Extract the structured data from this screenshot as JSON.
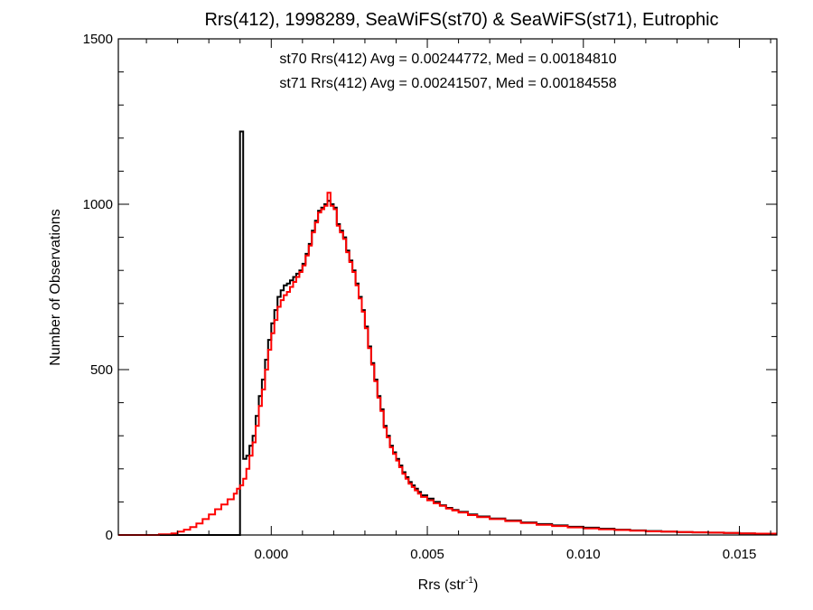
{
  "chart_data": {
    "type": "histogram",
    "title": "Rrs(412), 1998289, SeaWiFS(st70) & SeaWiFS(st71), Eutrophic",
    "xlabel": "Rrs (str",
    "xlabel_sup": "-1",
    "xlabel_end": ")",
    "ylabel": "Number of Observations",
    "xlim": [
      -0.0049,
      0.0162
    ],
    "ylim": [
      0,
      1500
    ],
    "x_ticks": [
      {
        "value": 0.0,
        "label": "0.000"
      },
      {
        "value": 0.005,
        "label": "0.005"
      },
      {
        "value": 0.01,
        "label": "0.010"
      },
      {
        "value": 0.015,
        "label": "0.015"
      }
    ],
    "y_ticks": [
      {
        "value": 0,
        "label": "0"
      },
      {
        "value": 500,
        "label": "500"
      },
      {
        "value": 1000,
        "label": "1000"
      },
      {
        "value": 1500,
        "label": "1500"
      }
    ],
    "grid": false,
    "legend_placement": "top-center",
    "stats": [
      {
        "text": "st70 Rrs(412) Avg = 0.00244772, Med = 0.00184810",
        "color": "#000000"
      },
      {
        "text": "st71 Rrs(412) Avg = 0.00241507, Med = 0.00184558",
        "color": "#ff0000"
      }
    ],
    "series": [
      {
        "color": "#000000",
        "points": [
          [
            -0.0049,
            0
          ],
          [
            -0.0011,
            0
          ],
          [
            -0.001,
            1220
          ],
          [
            -0.0009,
            230
          ],
          [
            -0.0008,
            240
          ],
          [
            -0.0007,
            270
          ],
          [
            -0.0006,
            300
          ],
          [
            -0.0005,
            360
          ],
          [
            -0.0004,
            420
          ],
          [
            -0.0003,
            470
          ],
          [
            -0.0002,
            530
          ],
          [
            -0.0001,
            590
          ],
          [
            0.0,
            640
          ],
          [
            0.0001,
            680
          ],
          [
            0.0002,
            720
          ],
          [
            0.0003,
            740
          ],
          [
            0.0004,
            755
          ],
          [
            0.0005,
            760
          ],
          [
            0.0006,
            770
          ],
          [
            0.0007,
            780
          ],
          [
            0.0008,
            790
          ],
          [
            0.0009,
            800
          ],
          [
            0.001,
            820
          ],
          [
            0.0011,
            850
          ],
          [
            0.0012,
            880
          ],
          [
            0.0013,
            920
          ],
          [
            0.0014,
            950
          ],
          [
            0.0015,
            980
          ],
          [
            0.0016,
            990
          ],
          [
            0.0017,
            1000
          ],
          [
            0.0018,
            1010
          ],
          [
            0.0019,
            1000
          ],
          [
            0.002,
            990
          ],
          [
            0.0021,
            940
          ],
          [
            0.0022,
            920
          ],
          [
            0.0023,
            900
          ],
          [
            0.0024,
            860
          ],
          [
            0.0025,
            830
          ],
          [
            0.0026,
            800
          ],
          [
            0.0027,
            760
          ],
          [
            0.0028,
            720
          ],
          [
            0.0029,
            680
          ],
          [
            0.003,
            630
          ],
          [
            0.0031,
            570
          ],
          [
            0.0032,
            520
          ],
          [
            0.0033,
            470
          ],
          [
            0.0034,
            420
          ],
          [
            0.0035,
            380
          ],
          [
            0.0036,
            330
          ],
          [
            0.0037,
            300
          ],
          [
            0.0038,
            270
          ],
          [
            0.0039,
            250
          ],
          [
            0.004,
            230
          ],
          [
            0.0041,
            210
          ],
          [
            0.0042,
            190
          ],
          [
            0.0043,
            175
          ],
          [
            0.0044,
            160
          ],
          [
            0.0045,
            150
          ],
          [
            0.0046,
            140
          ],
          [
            0.0047,
            130
          ],
          [
            0.0048,
            120
          ],
          [
            0.005,
            110
          ],
          [
            0.0052,
            100
          ],
          [
            0.0054,
            90
          ],
          [
            0.0056,
            82
          ],
          [
            0.0058,
            76
          ],
          [
            0.006,
            70
          ],
          [
            0.0063,
            62
          ],
          [
            0.0066,
            56
          ],
          [
            0.007,
            50
          ],
          [
            0.0075,
            44
          ],
          [
            0.008,
            38
          ],
          [
            0.0085,
            33
          ],
          [
            0.009,
            29
          ],
          [
            0.0095,
            25
          ],
          [
            0.01,
            22
          ],
          [
            0.0105,
            19
          ],
          [
            0.011,
            16
          ],
          [
            0.0115,
            14
          ],
          [
            0.012,
            12
          ],
          [
            0.0125,
            10
          ],
          [
            0.013,
            9
          ],
          [
            0.0135,
            8
          ],
          [
            0.014,
            7
          ],
          [
            0.0145,
            6
          ],
          [
            0.015,
            5
          ],
          [
            0.0155,
            4
          ],
          [
            0.0162,
            4
          ]
        ]
      },
      {
        "color": "#ff0000",
        "points": [
          [
            -0.0049,
            0
          ],
          [
            -0.004,
            0
          ],
          [
            -0.0036,
            2
          ],
          [
            -0.0032,
            5
          ],
          [
            -0.003,
            10
          ],
          [
            -0.0028,
            16
          ],
          [
            -0.0026,
            24
          ],
          [
            -0.0024,
            35
          ],
          [
            -0.0022,
            48
          ],
          [
            -0.002,
            62
          ],
          [
            -0.0018,
            78
          ],
          [
            -0.0016,
            92
          ],
          [
            -0.0014,
            108
          ],
          [
            -0.0012,
            125
          ],
          [
            -0.0011,
            140
          ],
          [
            -0.001,
            150
          ],
          [
            -0.0009,
            170
          ],
          [
            -0.0008,
            200
          ],
          [
            -0.0007,
            240
          ],
          [
            -0.0006,
            280
          ],
          [
            -0.0005,
            330
          ],
          [
            -0.0004,
            390
          ],
          [
            -0.0003,
            440
          ],
          [
            -0.0002,
            500
          ],
          [
            -0.0001,
            560
          ],
          [
            0.0,
            610
          ],
          [
            0.0001,
            650
          ],
          [
            0.0002,
            690
          ],
          [
            0.0003,
            710
          ],
          [
            0.0004,
            725
          ],
          [
            0.0005,
            735
          ],
          [
            0.0006,
            750
          ],
          [
            0.0007,
            765
          ],
          [
            0.0008,
            780
          ],
          [
            0.0009,
            795
          ],
          [
            0.001,
            815
          ],
          [
            0.0011,
            845
          ],
          [
            0.0012,
            875
          ],
          [
            0.0013,
            915
          ],
          [
            0.0014,
            945
          ],
          [
            0.0015,
            975
          ],
          [
            0.0016,
            985
          ],
          [
            0.0017,
            995
          ],
          [
            0.0018,
            1035
          ],
          [
            0.0019,
            995
          ],
          [
            0.002,
            985
          ],
          [
            0.0021,
            935
          ],
          [
            0.0022,
            915
          ],
          [
            0.0023,
            895
          ],
          [
            0.0024,
            855
          ],
          [
            0.0025,
            825
          ],
          [
            0.0026,
            795
          ],
          [
            0.0027,
            755
          ],
          [
            0.0028,
            715
          ],
          [
            0.0029,
            675
          ],
          [
            0.003,
            625
          ],
          [
            0.0031,
            565
          ],
          [
            0.0032,
            515
          ],
          [
            0.0033,
            465
          ],
          [
            0.0034,
            415
          ],
          [
            0.0035,
            375
          ],
          [
            0.0036,
            325
          ],
          [
            0.0037,
            295
          ],
          [
            0.0038,
            265
          ],
          [
            0.0039,
            245
          ],
          [
            0.004,
            225
          ],
          [
            0.0041,
            205
          ],
          [
            0.0042,
            185
          ],
          [
            0.0043,
            170
          ],
          [
            0.0044,
            155
          ],
          [
            0.0045,
            145
          ],
          [
            0.0046,
            135
          ],
          [
            0.0047,
            125
          ],
          [
            0.0048,
            115
          ],
          [
            0.005,
            105
          ],
          [
            0.0052,
            96
          ],
          [
            0.0054,
            88
          ],
          [
            0.0056,
            80
          ],
          [
            0.0058,
            74
          ],
          [
            0.006,
            68
          ],
          [
            0.0063,
            60
          ],
          [
            0.0066,
            54
          ],
          [
            0.007,
            48
          ],
          [
            0.0075,
            42
          ],
          [
            0.008,
            36
          ],
          [
            0.0085,
            31
          ],
          [
            0.009,
            27
          ],
          [
            0.0095,
            23
          ],
          [
            0.01,
            20
          ],
          [
            0.0105,
            17
          ],
          [
            0.011,
            15
          ],
          [
            0.0115,
            13
          ],
          [
            0.012,
            11
          ],
          [
            0.0125,
            10
          ],
          [
            0.013,
            9
          ],
          [
            0.0135,
            8
          ],
          [
            0.014,
            7
          ],
          [
            0.0145,
            6
          ],
          [
            0.015,
            5
          ],
          [
            0.0155,
            4
          ],
          [
            0.0162,
            4
          ]
        ]
      }
    ]
  }
}
